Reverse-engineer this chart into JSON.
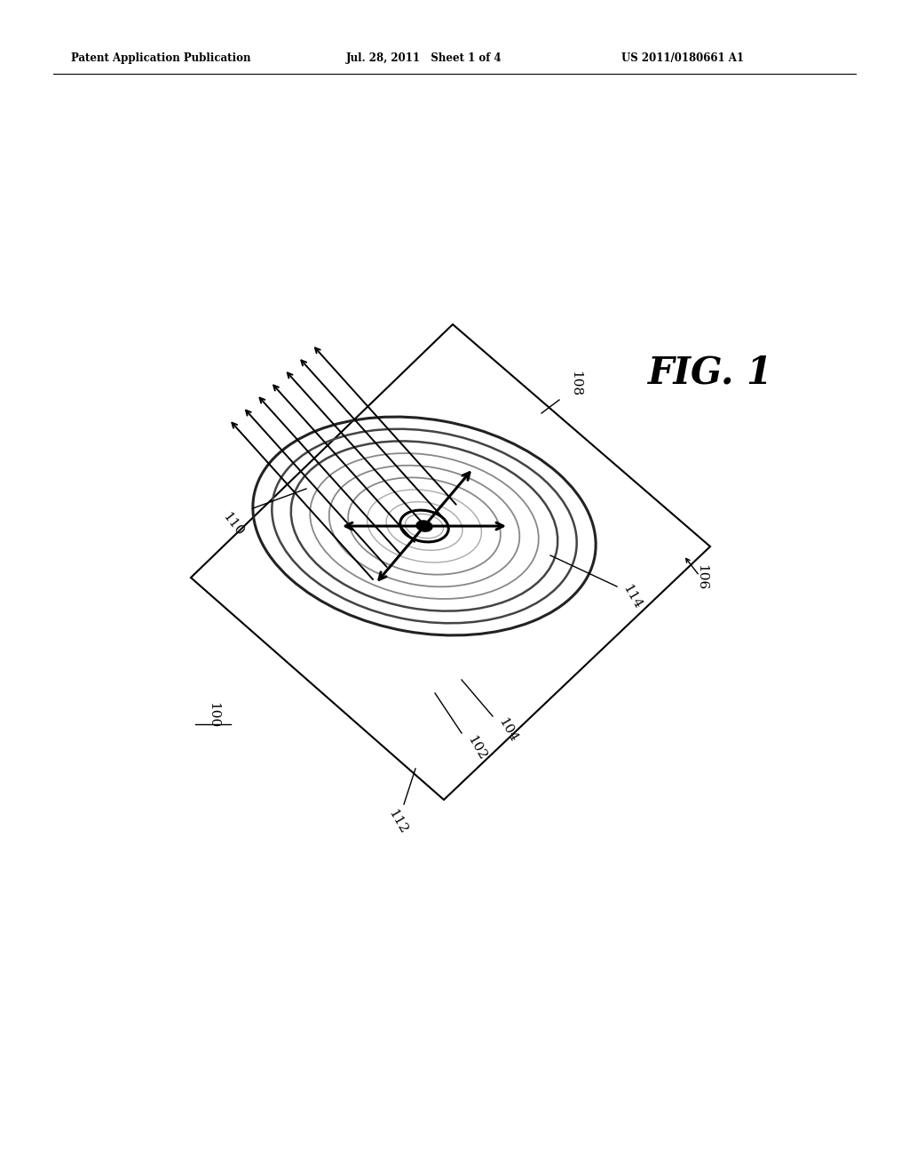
{
  "header_left": "Patent Application Publication",
  "header_mid": "Jul. 28, 2011   Sheet 1 of 4",
  "header_right": "US 2011/0180661 A1",
  "fig_label": "FIG. 1",
  "label_100": "100",
  "label_102": "102",
  "label_104": "104",
  "label_106": "106",
  "label_108": "108",
  "label_110": "110",
  "label_112": "112",
  "label_114": "114",
  "bg_color": "#ffffff",
  "line_color": "#000000",
  "ring_color_outer": "#aaaaaa",
  "ring_color_mid": "#888888",
  "ring_color_inner": "#444444",
  "num_rings": 9,
  "num_light_arrows": 7
}
